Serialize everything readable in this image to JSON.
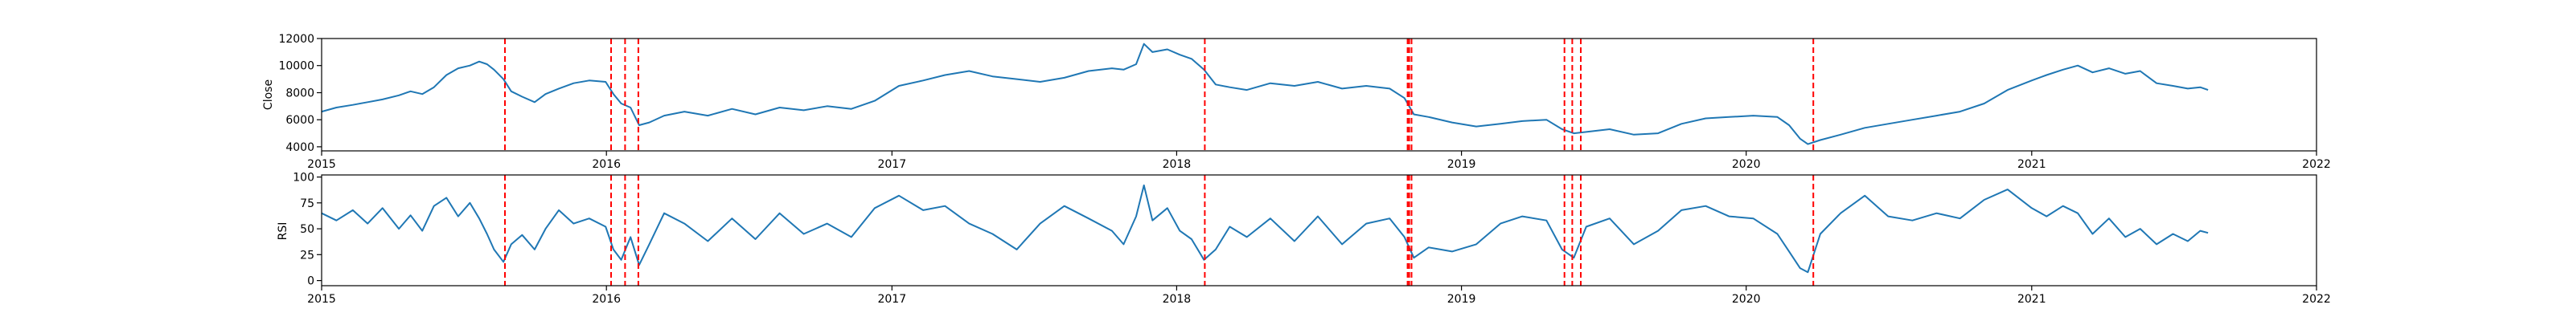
{
  "colors": {
    "line": "#1f77b4",
    "event": "#ff0000",
    "axis": "#000000",
    "background": "#ffffff"
  },
  "chart_data": [
    {
      "type": "line",
      "title": "",
      "xlabel": "",
      "ylabel": "Close",
      "xlim": [
        "2015-01-01",
        "2022-01-01"
      ],
      "ylim": [
        3700,
        12000
      ],
      "yticks": [
        4000,
        6000,
        8000,
        10000,
        12000
      ],
      "xticks": [
        "2015",
        "2016",
        "2017",
        "2018",
        "2019",
        "2020",
        "2021",
        "2022"
      ],
      "grid": false,
      "series": [
        {
          "name": "",
          "points": [
            [
              "2015-01-01",
              6600
            ],
            [
              "2015-01-20",
              6900
            ],
            [
              "2015-02-10",
              7100
            ],
            [
              "2015-03-01",
              7300
            ],
            [
              "2015-03-20",
              7500
            ],
            [
              "2015-04-10",
              7800
            ],
            [
              "2015-04-25",
              8100
            ],
            [
              "2015-05-10",
              7900
            ],
            [
              "2015-05-25",
              8400
            ],
            [
              "2015-06-10",
              9300
            ],
            [
              "2015-06-25",
              9800
            ],
            [
              "2015-07-10",
              10000
            ],
            [
              "2015-07-22",
              10300
            ],
            [
              "2015-08-01",
              10100
            ],
            [
              "2015-08-10",
              9700
            ],
            [
              "2015-08-22",
              9000
            ],
            [
              "2015-09-01",
              8100
            ],
            [
              "2015-09-15",
              7700
            ],
            [
              "2015-10-01",
              7300
            ],
            [
              "2015-10-15",
              7900
            ],
            [
              "2015-11-01",
              8300
            ],
            [
              "2015-11-20",
              8700
            ],
            [
              "2015-12-10",
              8900
            ],
            [
              "2015-12-31",
              8800
            ],
            [
              "2016-01-10",
              7900
            ],
            [
              "2016-01-20",
              7200
            ],
            [
              "2016-02-01",
              6900
            ],
            [
              "2016-02-12",
              5600
            ],
            [
              "2016-02-25",
              5800
            ],
            [
              "2016-03-15",
              6300
            ],
            [
              "2016-04-10",
              6600
            ],
            [
              "2016-05-10",
              6300
            ],
            [
              "2016-06-10",
              6800
            ],
            [
              "2016-07-10",
              6400
            ],
            [
              "2016-08-10",
              6900
            ],
            [
              "2016-09-10",
              6700
            ],
            [
              "2016-10-10",
              7000
            ],
            [
              "2016-11-10",
              6800
            ],
            [
              "2016-12-10",
              7400
            ],
            [
              "2017-01-10",
              8500
            ],
            [
              "2017-02-10",
              8900
            ],
            [
              "2017-03-10",
              9300
            ],
            [
              "2017-04-10",
              9600
            ],
            [
              "2017-05-10",
              9200
            ],
            [
              "2017-06-10",
              9000
            ],
            [
              "2017-07-10",
              8800
            ],
            [
              "2017-08-10",
              9100
            ],
            [
              "2017-09-10",
              9600
            ],
            [
              "2017-10-10",
              9800
            ],
            [
              "2017-10-25",
              9700
            ],
            [
              "2017-11-10",
              10100
            ],
            [
              "2017-11-20",
              11600
            ],
            [
              "2017-12-01",
              11000
            ],
            [
              "2017-12-20",
              11200
            ],
            [
              "2018-01-05",
              10800
            ],
            [
              "2018-01-20",
              10500
            ],
            [
              "2018-02-05",
              9700
            ],
            [
              "2018-02-20",
              8600
            ],
            [
              "2018-03-10",
              8400
            ],
            [
              "2018-04-01",
              8200
            ],
            [
              "2018-05-01",
              8700
            ],
            [
              "2018-06-01",
              8500
            ],
            [
              "2018-07-01",
              8800
            ],
            [
              "2018-08-01",
              8300
            ],
            [
              "2018-09-01",
              8500
            ],
            [
              "2018-10-01",
              8300
            ],
            [
              "2018-10-20",
              7600
            ],
            [
              "2018-11-01",
              6400
            ],
            [
              "2018-11-20",
              6200
            ],
            [
              "2018-12-20",
              5800
            ],
            [
              "2019-01-20",
              5500
            ],
            [
              "2019-02-20",
              5700
            ],
            [
              "2019-03-20",
              5900
            ],
            [
              "2019-04-20",
              6000
            ],
            [
              "2019-05-10",
              5300
            ],
            [
              "2019-05-25",
              5000
            ],
            [
              "2019-06-10",
              5100
            ],
            [
              "2019-07-10",
              5300
            ],
            [
              "2019-08-10",
              4900
            ],
            [
              "2019-09-10",
              5000
            ],
            [
              "2019-10-10",
              5700
            ],
            [
              "2019-11-10",
              6100
            ],
            [
              "2019-12-10",
              6200
            ],
            [
              "2020-01-10",
              6300
            ],
            [
              "2020-02-10",
              6200
            ],
            [
              "2020-02-25",
              5600
            ],
            [
              "2020-03-10",
              4600
            ],
            [
              "2020-03-20",
              4200
            ],
            [
              "2020-04-05",
              4500
            ],
            [
              "2020-05-01",
              4900
            ],
            [
              "2020-06-01",
              5400
            ],
            [
              "2020-07-01",
              5700
            ],
            [
              "2020-08-01",
              6000
            ],
            [
              "2020-09-01",
              6300
            ],
            [
              "2020-10-01",
              6600
            ],
            [
              "2020-11-01",
              7200
            ],
            [
              "2020-12-01",
              8200
            ],
            [
              "2021-01-01",
              8900
            ],
            [
              "2021-01-20",
              9300
            ],
            [
              "2021-02-10",
              9700
            ],
            [
              "2021-03-01",
              10000
            ],
            [
              "2021-03-20",
              9500
            ],
            [
              "2021-04-10",
              9800
            ],
            [
              "2021-05-01",
              9400
            ],
            [
              "2021-05-20",
              9600
            ],
            [
              "2021-06-10",
              8700
            ],
            [
              "2021-07-01",
              8500
            ],
            [
              "2021-07-20",
              8300
            ],
            [
              "2021-08-05",
              8400
            ],
            [
              "2021-08-15",
              8200
            ]
          ]
        }
      ],
      "event_lines": [
        "2015-08-24",
        "2016-01-07",
        "2016-01-25",
        "2016-02-11",
        "2018-02-06",
        "2018-10-24",
        "2018-10-26",
        "2018-10-29",
        "2019-05-13",
        "2019-05-23",
        "2019-06-03",
        "2020-03-27"
      ]
    },
    {
      "type": "line",
      "title": "",
      "xlabel": "",
      "ylabel": "RSI",
      "xlim": [
        "2015-01-01",
        "2022-01-01"
      ],
      "ylim": [
        -5,
        102
      ],
      "yticks": [
        0,
        25,
        50,
        75,
        100
      ],
      "xticks": [
        "2015",
        "2016",
        "2017",
        "2018",
        "2019",
        "2020",
        "2021",
        "2022"
      ],
      "grid": false,
      "series": [
        {
          "name": "",
          "points": [
            [
              "2015-01-01",
              65
            ],
            [
              "2015-01-20",
              58
            ],
            [
              "2015-02-10",
              68
            ],
            [
              "2015-03-01",
              55
            ],
            [
              "2015-03-20",
              70
            ],
            [
              "2015-04-10",
              50
            ],
            [
              "2015-04-25",
              63
            ],
            [
              "2015-05-10",
              48
            ],
            [
              "2015-05-25",
              72
            ],
            [
              "2015-06-10",
              80
            ],
            [
              "2015-06-25",
              62
            ],
            [
              "2015-07-10",
              75
            ],
            [
              "2015-07-22",
              60
            ],
            [
              "2015-08-01",
              45
            ],
            [
              "2015-08-10",
              30
            ],
            [
              "2015-08-22",
              18
            ],
            [
              "2015-09-01",
              35
            ],
            [
              "2015-09-15",
              44
            ],
            [
              "2015-10-01",
              30
            ],
            [
              "2015-10-15",
              50
            ],
            [
              "2015-11-01",
              68
            ],
            [
              "2015-11-20",
              55
            ],
            [
              "2015-12-10",
              60
            ],
            [
              "2015-12-31",
              52
            ],
            [
              "2016-01-10",
              30
            ],
            [
              "2016-01-20",
              20
            ],
            [
              "2016-02-01",
              42
            ],
            [
              "2016-02-12",
              15
            ],
            [
              "2016-02-25",
              35
            ],
            [
              "2016-03-15",
              65
            ],
            [
              "2016-04-10",
              55
            ],
            [
              "2016-05-10",
              38
            ],
            [
              "2016-06-10",
              60
            ],
            [
              "2016-07-10",
              40
            ],
            [
              "2016-08-10",
              65
            ],
            [
              "2016-09-10",
              45
            ],
            [
              "2016-10-10",
              55
            ],
            [
              "2016-11-10",
              42
            ],
            [
              "2016-12-10",
              70
            ],
            [
              "2017-01-10",
              82
            ],
            [
              "2017-02-10",
              68
            ],
            [
              "2017-03-10",
              72
            ],
            [
              "2017-04-10",
              55
            ],
            [
              "2017-05-10",
              45
            ],
            [
              "2017-06-10",
              30
            ],
            [
              "2017-07-10",
              55
            ],
            [
              "2017-08-10",
              72
            ],
            [
              "2017-09-10",
              60
            ],
            [
              "2017-10-10",
              48
            ],
            [
              "2017-10-25",
              35
            ],
            [
              "2017-11-10",
              62
            ],
            [
              "2017-11-20",
              92
            ],
            [
              "2017-12-01",
              58
            ],
            [
              "2017-12-20",
              70
            ],
            [
              "2018-01-05",
              48
            ],
            [
              "2018-01-20",
              40
            ],
            [
              "2018-02-05",
              20
            ],
            [
              "2018-02-20",
              30
            ],
            [
              "2018-03-10",
              52
            ],
            [
              "2018-04-01",
              42
            ],
            [
              "2018-05-01",
              60
            ],
            [
              "2018-06-01",
              38
            ],
            [
              "2018-07-01",
              62
            ],
            [
              "2018-08-01",
              35
            ],
            [
              "2018-09-01",
              55
            ],
            [
              "2018-10-01",
              60
            ],
            [
              "2018-10-20",
              42
            ],
            [
              "2018-11-01",
              22
            ],
            [
              "2018-11-20",
              32
            ],
            [
              "2018-12-20",
              28
            ],
            [
              "2019-01-20",
              35
            ],
            [
              "2019-02-20",
              55
            ],
            [
              "2019-03-20",
              62
            ],
            [
              "2019-04-20",
              58
            ],
            [
              "2019-05-10",
              30
            ],
            [
              "2019-05-25",
              22
            ],
            [
              "2019-06-10",
              52
            ],
            [
              "2019-07-10",
              60
            ],
            [
              "2019-08-10",
              35
            ],
            [
              "2019-09-10",
              48
            ],
            [
              "2019-10-10",
              68
            ],
            [
              "2019-11-10",
              72
            ],
            [
              "2019-12-10",
              62
            ],
            [
              "2020-01-10",
              60
            ],
            [
              "2020-02-10",
              45
            ],
            [
              "2020-02-25",
              28
            ],
            [
              "2020-03-10",
              12
            ],
            [
              "2020-03-20",
              8
            ],
            [
              "2020-04-05",
              45
            ],
            [
              "2020-05-01",
              65
            ],
            [
              "2020-06-01",
              82
            ],
            [
              "2020-07-01",
              62
            ],
            [
              "2020-08-01",
              58
            ],
            [
              "2020-09-01",
              65
            ],
            [
              "2020-10-01",
              60
            ],
            [
              "2020-11-01",
              78
            ],
            [
              "2020-12-01",
              88
            ],
            [
              "2021-01-01",
              70
            ],
            [
              "2021-01-20",
              62
            ],
            [
              "2021-02-10",
              72
            ],
            [
              "2021-03-01",
              65
            ],
            [
              "2021-03-20",
              45
            ],
            [
              "2021-04-10",
              60
            ],
            [
              "2021-05-01",
              42
            ],
            [
              "2021-05-20",
              50
            ],
            [
              "2021-06-10",
              35
            ],
            [
              "2021-07-01",
              45
            ],
            [
              "2021-07-20",
              38
            ],
            [
              "2021-08-05",
              48
            ],
            [
              "2021-08-15",
              46
            ]
          ]
        }
      ],
      "event_lines": [
        "2015-08-24",
        "2016-01-07",
        "2016-01-25",
        "2016-02-11",
        "2018-02-06",
        "2018-10-24",
        "2018-10-26",
        "2018-10-29",
        "2019-05-13",
        "2019-05-23",
        "2019-06-03",
        "2020-03-27"
      ]
    }
  ]
}
